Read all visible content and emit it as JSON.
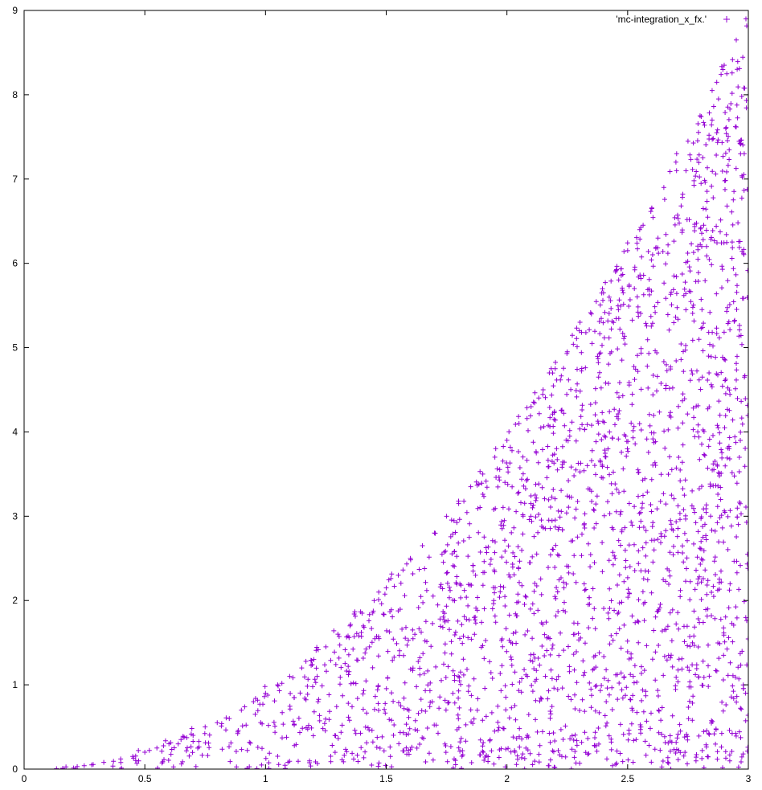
{
  "chart_data": {
    "type": "scatter",
    "title": "",
    "xlabel": "",
    "ylabel": "",
    "xlim": [
      0,
      3
    ],
    "ylim": [
      0,
      9
    ],
    "xticks": [
      "0",
      "0.5",
      "1",
      "1.5",
      "2",
      "2.5",
      "3"
    ],
    "yticks": [
      "0",
      "1",
      "2",
      "3",
      "4",
      "5",
      "6",
      "7",
      "8",
      "9"
    ],
    "grid": false,
    "legend_position": "top-right",
    "marker": "plus",
    "series": [
      {
        "name": "'mc-integration_x_fx.'",
        "color": "#9400d3",
        "region": {
          "x_min": 0,
          "x_max": 3,
          "y_min": 0,
          "y_max_function": "x^2"
        },
        "points": [
          [
            0.16,
            0.01
          ],
          [
            0.22,
            0.03
          ],
          [
            0.28,
            0.05
          ],
          [
            0.33,
            0.08
          ],
          [
            0.4,
            0.12
          ],
          [
            0.45,
            0.15
          ],
          [
            0.5,
            0.2
          ],
          [
            0.55,
            0.25
          ],
          [
            0.6,
            0.3
          ],
          [
            0.65,
            0.35
          ],
          [
            0.7,
            0.4
          ],
          [
            0.75,
            0.5
          ],
          [
            0.8,
            0.55
          ],
          [
            0.85,
            0.6
          ],
          [
            0.9,
            0.7
          ],
          [
            0.95,
            0.8
          ],
          [
            1.0,
            0.9
          ],
          [
            1.05,
            1.0
          ],
          [
            1.1,
            1.1
          ],
          [
            1.15,
            1.2
          ],
          [
            1.2,
            1.3
          ],
          [
            1.25,
            1.45
          ],
          [
            1.3,
            1.6
          ],
          [
            1.35,
            1.7
          ],
          [
            1.4,
            1.85
          ],
          [
            1.45,
            2.0
          ],
          [
            1.5,
            2.15
          ],
          [
            1.55,
            2.3
          ],
          [
            1.6,
            2.5
          ],
          [
            1.65,
            2.65
          ],
          [
            1.7,
            2.8
          ],
          [
            1.75,
            3.0
          ],
          [
            1.8,
            3.15
          ],
          [
            1.85,
            3.35
          ],
          [
            1.9,
            3.5
          ],
          [
            1.95,
            3.7
          ],
          [
            2.0,
            3.9
          ],
          [
            2.05,
            4.1
          ],
          [
            2.1,
            4.3
          ],
          [
            2.15,
            4.5
          ],
          [
            2.2,
            4.75
          ],
          [
            2.25,
            4.95
          ],
          [
            2.3,
            5.2
          ],
          [
            2.35,
            5.4
          ],
          [
            2.4,
            5.65
          ],
          [
            2.45,
            5.9
          ],
          [
            2.5,
            6.15
          ],
          [
            2.55,
            6.4
          ],
          [
            2.6,
            6.65
          ],
          [
            2.65,
            6.9
          ],
          [
            2.7,
            7.2
          ],
          [
            2.75,
            7.45
          ],
          [
            2.8,
            7.75
          ],
          [
            2.85,
            8.05
          ],
          [
            2.9,
            8.35
          ],
          [
            2.95,
            8.65
          ],
          [
            2.99,
            8.9
          ]
        ]
      }
    ]
  }
}
